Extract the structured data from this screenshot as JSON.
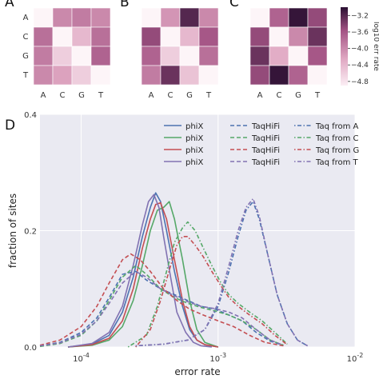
{
  "chart_data": [
    {
      "type": "heatmap",
      "panel_label": "A",
      "rows": [
        "A",
        "C",
        "G",
        "T"
      ],
      "cols": [
        "A",
        "C",
        "G",
        "T"
      ],
      "values": [
        [
          null,
          -4.0,
          -3.9,
          -4.0
        ],
        [
          -3.8,
          null,
          -4.4,
          -3.8
        ],
        [
          -3.9,
          -4.6,
          null,
          -3.7
        ],
        [
          -4.0,
          -4.2,
          -4.6,
          null
        ]
      ]
    },
    {
      "type": "heatmap",
      "panel_label": "B",
      "rows": [
        "A",
        "C",
        "G",
        "T"
      ],
      "cols": [
        "A",
        "C",
        "G",
        "T"
      ],
      "values": [
        [
          null,
          -4.1,
          -3.2,
          -4.0
        ],
        [
          -3.5,
          null,
          -4.4,
          -3.6
        ],
        [
          -3.7,
          -4.6,
          null,
          -3.8
        ],
        [
          -3.9,
          -3.3,
          -4.5,
          null
        ]
      ]
    },
    {
      "type": "heatmap",
      "panel_label": "C",
      "rows": [
        "A",
        "C",
        "G",
        "T"
      ],
      "cols": [
        "A",
        "C",
        "G",
        "T"
      ],
      "values": [
        [
          null,
          -3.7,
          -3.05,
          -3.5
        ],
        [
          -3.5,
          null,
          -4.0,
          -3.3
        ],
        [
          -3.3,
          -4.3,
          null,
          -3.6
        ],
        [
          -3.5,
          -3.05,
          -3.7,
          null
        ]
      ],
      "colorbar": {
        "label": "log10 err rate",
        "ticks": [
          -3.2,
          -3.6,
          -4.0,
          -4.4,
          -4.8
        ],
        "tick_labels": [
          "−3.2",
          "−3.6",
          "−4.0",
          "−4.4",
          "−4.8"
        ],
        "range": [
          -4.9,
          -3.0
        ]
      }
    },
    {
      "type": "line",
      "panel_label": "D",
      "xlabel": "error rate",
      "ylabel": "fraction of sites",
      "xscale": "log",
      "xlim": [
        5e-05,
        0.01
      ],
      "ylim": [
        0,
        0.4
      ],
      "xticks": [
        0.0001,
        0.001,
        0.01
      ],
      "xtick_labels": [
        {
          "base": "10",
          "exp": "-4"
        },
        {
          "base": "10",
          "exp": "-3"
        },
        {
          "base": "10",
          "exp": "-2"
        }
      ],
      "yticks": [
        0,
        0.2,
        0.4
      ],
      "ytick_labels": [
        "0.0",
        "0.2",
        "0.4"
      ],
      "legend_position": "top-right",
      "grid": true,
      "series": [
        {
          "name": "phiX",
          "color": "#4c72b0",
          "dash": "solid",
          "x": [
            8e-05,
            0.00012,
            0.00016,
            0.0002,
            0.00024,
            0.00028,
            0.00032,
            0.00035,
            0.00038,
            0.00042,
            0.00048,
            0.00055,
            0.00062,
            0.0007,
            0.0008,
            0.001
          ],
          "y": [
            0.0,
            0.005,
            0.02,
            0.06,
            0.12,
            0.19,
            0.24,
            0.265,
            0.25,
            0.2,
            0.13,
            0.07,
            0.03,
            0.012,
            0.004,
            0.0
          ]
        },
        {
          "name": "phiX",
          "color": "#55a868",
          "dash": "solid",
          "x": [
            8e-05,
            0.00012,
            0.00016,
            0.0002,
            0.00024,
            0.00028,
            0.00032,
            0.00036,
            0.0004,
            0.00044,
            0.00048,
            0.00055,
            0.00062,
            0.0007,
            0.0008,
            0.001
          ],
          "y": [
            0.0,
            0.003,
            0.012,
            0.035,
            0.08,
            0.14,
            0.2,
            0.235,
            0.24,
            0.25,
            0.22,
            0.15,
            0.08,
            0.03,
            0.008,
            0.0
          ]
        },
        {
          "name": "phiX",
          "color": "#c44e52",
          "dash": "solid",
          "x": [
            8e-05,
            0.00012,
            0.00016,
            0.0002,
            0.00024,
            0.00028,
            0.00032,
            0.00035,
            0.00038,
            0.00042,
            0.00048,
            0.00055,
            0.00062,
            0.0007,
            0.0008,
            0.001
          ],
          "y": [
            0.0,
            0.004,
            0.015,
            0.045,
            0.1,
            0.17,
            0.22,
            0.245,
            0.248,
            0.22,
            0.15,
            0.08,
            0.035,
            0.012,
            0.004,
            0.0
          ]
        },
        {
          "name": "phiX",
          "color": "#8172b2",
          "dash": "solid",
          "x": [
            8e-05,
            0.00012,
            0.00016,
            0.0002,
            0.00024,
            0.00028,
            0.00031,
            0.00034,
            0.00037,
            0.0004,
            0.00045,
            0.0005,
            0.00058,
            0.00066,
            0.00075,
            0.0009
          ],
          "y": [
            0.0,
            0.006,
            0.025,
            0.07,
            0.14,
            0.21,
            0.25,
            0.262,
            0.24,
            0.19,
            0.12,
            0.06,
            0.025,
            0.008,
            0.002,
            0.0
          ]
        },
        {
          "name": "TaqHiFi",
          "color": "#4c72b0",
          "dash": "dashed",
          "x": [
            5e-05,
            7e-05,
            0.0001,
            0.00013,
            0.00016,
            0.0002,
            0.00025,
            0.0003,
            0.00038,
            0.00048,
            0.0006,
            0.00075,
            0.00095,
            0.0012,
            0.0015,
            0.0019,
            0.0024,
            0.003
          ],
          "y": [
            0.002,
            0.008,
            0.025,
            0.05,
            0.085,
            0.125,
            0.13,
            0.115,
            0.1,
            0.09,
            0.08,
            0.07,
            0.065,
            0.055,
            0.045,
            0.025,
            0.01,
            0.003
          ]
        },
        {
          "name": "TaqHiFi",
          "color": "#55a868",
          "dash": "dashed",
          "x": [
            5e-05,
            7e-05,
            0.0001,
            0.00013,
            0.00016,
            0.0002,
            0.00025,
            0.0003,
            0.00038,
            0.00048,
            0.0006,
            0.00075,
            0.00095,
            0.0012,
            0.0015,
            0.0019,
            0.0024,
            0.003
          ],
          "y": [
            0.001,
            0.006,
            0.02,
            0.045,
            0.08,
            0.12,
            0.14,
            0.125,
            0.1,
            0.085,
            0.075,
            0.068,
            0.062,
            0.055,
            0.045,
            0.03,
            0.012,
            0.003
          ]
        },
        {
          "name": "TaqHiFi",
          "color": "#c44e52",
          "dash": "dashed",
          "x": [
            5e-05,
            7e-05,
            0.0001,
            0.00013,
            0.00016,
            0.0002,
            0.00023,
            0.00027,
            0.00032,
            0.0004,
            0.0005,
            0.00062,
            0.00078,
            0.001,
            0.0013,
            0.0017,
            0.0022,
            0.003
          ],
          "y": [
            0.003,
            0.012,
            0.035,
            0.07,
            0.11,
            0.15,
            0.16,
            0.15,
            0.13,
            0.1,
            0.08,
            0.065,
            0.055,
            0.045,
            0.035,
            0.02,
            0.008,
            0.002
          ]
        },
        {
          "name": "TaqHiFi",
          "color": "#8172b2",
          "dash": "dashed",
          "x": [
            5e-05,
            7e-05,
            0.0001,
            0.00013,
            0.00016,
            0.0002,
            0.00025,
            0.0003,
            0.00038,
            0.00048,
            0.0006,
            0.00075,
            0.00095,
            0.0012,
            0.0015,
            0.0019,
            0.0024,
            0.003
          ],
          "y": [
            0.002,
            0.007,
            0.022,
            0.045,
            0.075,
            0.11,
            0.13,
            0.12,
            0.1,
            0.088,
            0.078,
            0.07,
            0.066,
            0.06,
            0.05,
            0.03,
            0.012,
            0.003
          ]
        },
        {
          "name": "Taq from A",
          "color": "#4c72b0",
          "dash": "dashdot",
          "x": [
            0.00025,
            0.0004,
            0.0006,
            0.0008,
            0.001,
            0.0012,
            0.0014,
            0.0016,
            0.0018,
            0.002,
            0.0023,
            0.0027,
            0.0032,
            0.0038,
            0.0045
          ],
          "y": [
            0.002,
            0.005,
            0.012,
            0.03,
            0.07,
            0.13,
            0.19,
            0.235,
            0.25,
            0.22,
            0.16,
            0.09,
            0.04,
            0.012,
            0.002
          ]
        },
        {
          "name": "Taq from C",
          "color": "#55a868",
          "dash": "dashdot",
          "x": [
            0.00022,
            0.0003,
            0.00036,
            0.00042,
            0.00048,
            0.00055,
            0.0006,
            0.00068,
            0.00078,
            0.0009,
            0.00105,
            0.0012,
            0.0014,
            0.0017,
            0.0021,
            0.0026,
            0.0032
          ],
          "y": [
            0.0,
            0.02,
            0.07,
            0.13,
            0.18,
            0.205,
            0.215,
            0.2,
            0.17,
            0.14,
            0.11,
            0.09,
            0.075,
            0.06,
            0.045,
            0.025,
            0.005
          ]
        },
        {
          "name": "Taq from G",
          "color": "#c44e52",
          "dash": "dashdot",
          "x": [
            0.00025,
            0.00032,
            0.00038,
            0.00045,
            0.0005,
            0.00055,
            0.0006,
            0.00068,
            0.00078,
            0.0009,
            0.00105,
            0.0012,
            0.0014,
            0.0017,
            0.0021,
            0.0026,
            0.0032
          ],
          "y": [
            0.0,
            0.03,
            0.08,
            0.14,
            0.175,
            0.19,
            0.19,
            0.175,
            0.155,
            0.13,
            0.105,
            0.085,
            0.07,
            0.055,
            0.04,
            0.02,
            0.004
          ]
        },
        {
          "name": "Taq from T",
          "color": "#8172b2",
          "dash": "dashdot",
          "x": [
            0.00025,
            0.0004,
            0.0006,
            0.0008,
            0.001,
            0.0012,
            0.0014,
            0.0016,
            0.0018,
            0.002,
            0.0023,
            0.0027,
            0.0032,
            0.0038,
            0.0045
          ],
          "y": [
            0.002,
            0.005,
            0.012,
            0.03,
            0.075,
            0.14,
            0.2,
            0.24,
            0.255,
            0.225,
            0.16,
            0.09,
            0.04,
            0.012,
            0.002
          ]
        }
      ]
    }
  ]
}
